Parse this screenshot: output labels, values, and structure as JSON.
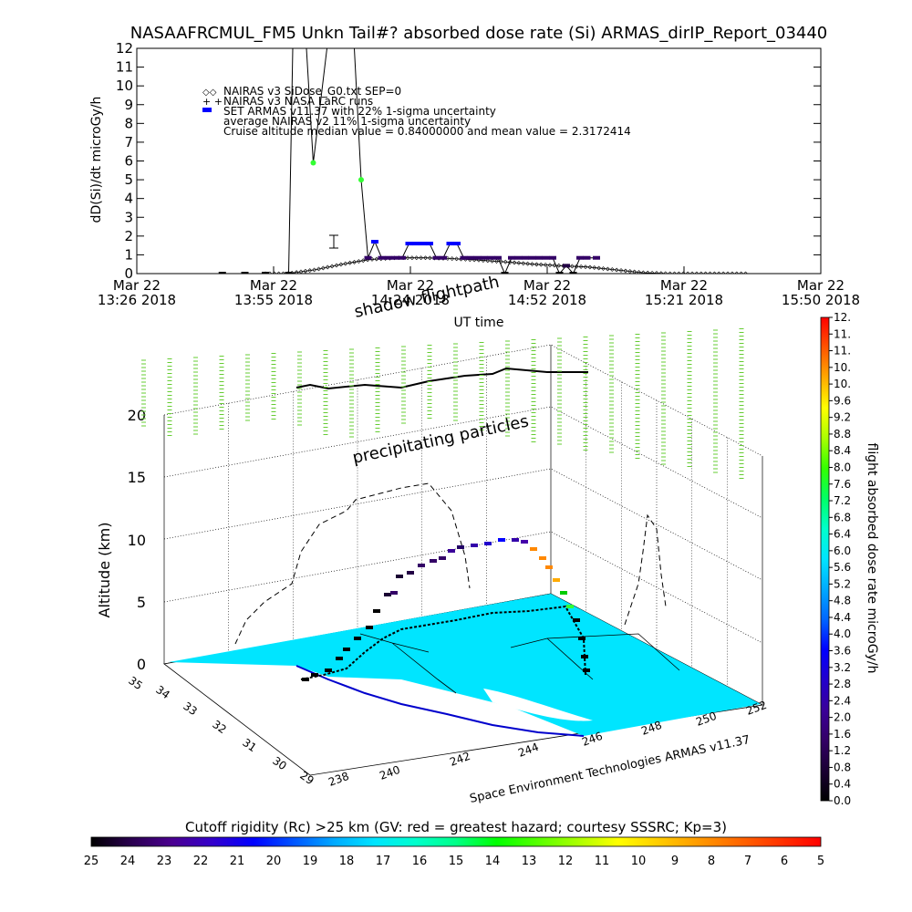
{
  "chart_data": [
    {
      "type": "line",
      "title": "NASAAFRCMUL_FM5 Unkn Tail#? absorbed dose rate (Si) ARMAS_dirIP_Report_03440",
      "xlabel": "UT time",
      "ylabel": "dD(Si)/dt microGy/h",
      "ylim": [
        0,
        12
      ],
      "yticks": [
        "0",
        "1",
        "2",
        "3",
        "4",
        "5",
        "6",
        "7",
        "8",
        "9",
        "10",
        "11",
        "12"
      ],
      "xticks": [
        {
          "line1": "Mar 22",
          "line2": "13:26 2018"
        },
        {
          "line1": "Mar 22",
          "line2": "13:55 2018"
        },
        {
          "line1": "Mar 22",
          "line2": "14:24 2018"
        },
        {
          "line1": "Mar 22",
          "line2": "14:52 2018"
        },
        {
          "line1": "Mar 22",
          "line2": "15:21 2018"
        },
        {
          "line1": "Mar 22",
          "line2": "15:50 2018"
        }
      ],
      "legend": [
        "NAIRAS v3 SiDose_G0.txt SEP=0",
        "NAIRAS v3 NASA LaRC runs",
        "SET ARMAS v11.37 with 22% 1-sigma uncertainty",
        "average NAIRAS v2 11% 1-sigma uncertainty",
        "Cruise altitude median value = 0.84000000 and mean value = 2.3172414"
      ],
      "legend_placement": "top-left",
      "series": [
        {
          "name": "SET ARMAS v11.37 with 22% 1-sigma uncertainty",
          "x": [
            0.125,
            0.158,
            0.188,
            0.222,
            0.228,
            0.248,
            0.258,
            0.278,
            0.298,
            0.312,
            0.318,
            0.328,
            0.338,
            0.348,
            0.358,
            0.368,
            0.378,
            0.388,
            0.398,
            0.408,
            0.418,
            0.428,
            0.438,
            0.448,
            0.458,
            0.468,
            0.478,
            0.488,
            0.498,
            0.508,
            0.518,
            0.528,
            0.538,
            0.548,
            0.558,
            0.568,
            0.578,
            0.588,
            0.598,
            0.608,
            0.618,
            0.628,
            0.638,
            0.648,
            0.658,
            0.672
          ],
          "y": [
            0,
            0,
            0,
            0,
            12,
            12,
            5.9,
            12,
            12,
            12,
            12,
            5.0,
            0.84,
            1.7,
            0.84,
            0.84,
            0.84,
            0.84,
            1.6,
            1.6,
            1.6,
            1.6,
            0.84,
            0.84,
            1.6,
            1.6,
            0.84,
            0.84,
            0.84,
            0.84,
            0.84,
            0.84,
            0,
            0.84,
            0.84,
            0.84,
            0.84,
            0.84,
            0.84,
            0.84,
            0,
            0.42,
            0,
            0.84,
            0.84,
            0.84
          ],
          "color": "#0000ff"
        },
        {
          "name": "NAIRAS v3 SiDose_G0.txt SEP=0",
          "x": [
            0.188,
            0.22,
            0.26,
            0.3,
            0.34,
            0.38,
            0.42,
            0.46,
            0.5,
            0.54,
            0.58,
            0.62,
            0.66,
            0.7,
            0.74,
            0.78,
            0.82,
            0.86,
            0.89
          ],
          "y": [
            0,
            0,
            0.2,
            0.5,
            0.75,
            0.84,
            0.84,
            0.8,
            0.72,
            0.62,
            0.5,
            0.42,
            0.35,
            0.2,
            0.05,
            0,
            0,
            0,
            0
          ],
          "color": "#000000"
        }
      ]
    },
    {
      "type": "scatter",
      "zlabel": "Altitude (km)",
      "zticks": [
        "0",
        "5",
        "10",
        "15",
        "20"
      ],
      "lat_ticks": [
        "35",
        "34",
        "33",
        "32",
        "31",
        "30",
        "29"
      ],
      "lon_ticks": [
        "238",
        "240",
        "242",
        "244",
        "246",
        "248",
        "250",
        "252"
      ],
      "annotations": [
        "shadow flightpath",
        "precipitating particles"
      ],
      "credit": "Space Environment Technologies ARMAS v11.37",
      "colorbar": {
        "label": "flight absorbed dose rate microGy/h",
        "ticks": [
          "0.0",
          "0.4",
          "0.8",
          "1.2",
          "1.6",
          "2.0",
          "2.4",
          "2.8",
          "3.2",
          "3.6",
          "4.0",
          "4.4",
          "4.8",
          "5.2",
          "5.6",
          "6.0",
          "6.4",
          "6.8",
          "7.2",
          "7.6",
          "8.0",
          "8.4",
          "8.8",
          "9.2",
          "9.6",
          "10.",
          "10.",
          "11.",
          "11.",
          "12."
        ],
        "colors": [
          "#000000",
          "#1a0033",
          "#330066",
          "#3a0099",
          "#2200cc",
          "#0000ff",
          "#0066ff",
          "#00aaff",
          "#00e5ff",
          "#00ffcc",
          "#00ff66",
          "#33ff00",
          "#aaff00",
          "#ffff00",
          "#ffaa00",
          "#ff5500",
          "#ff0000"
        ]
      }
    },
    {
      "type": "heatmap",
      "title": "Cutoff rigidity (Rc) >25 km (GV: red = greatest hazard; courtesy SSSRC; Kp=3)",
      "ticks": [
        "25",
        "24",
        "23",
        "22",
        "21",
        "20",
        "19",
        "18",
        "17",
        "16",
        "15",
        "14",
        "13",
        "12",
        "11",
        "10",
        "9",
        "8",
        "7",
        "6",
        "5"
      ],
      "colors": [
        "#000000",
        "#2a0050",
        "#4b0090",
        "#3300cc",
        "#0000ff",
        "#0055ff",
        "#00aaff",
        "#00e5ff",
        "#00ffcc",
        "#00ff88",
        "#00ff00",
        "#55ff00",
        "#aaff00",
        "#ffff00",
        "#ffcc00",
        "#ff9900",
        "#ff6600",
        "#ff3300",
        "#ff0000"
      ]
    }
  ]
}
